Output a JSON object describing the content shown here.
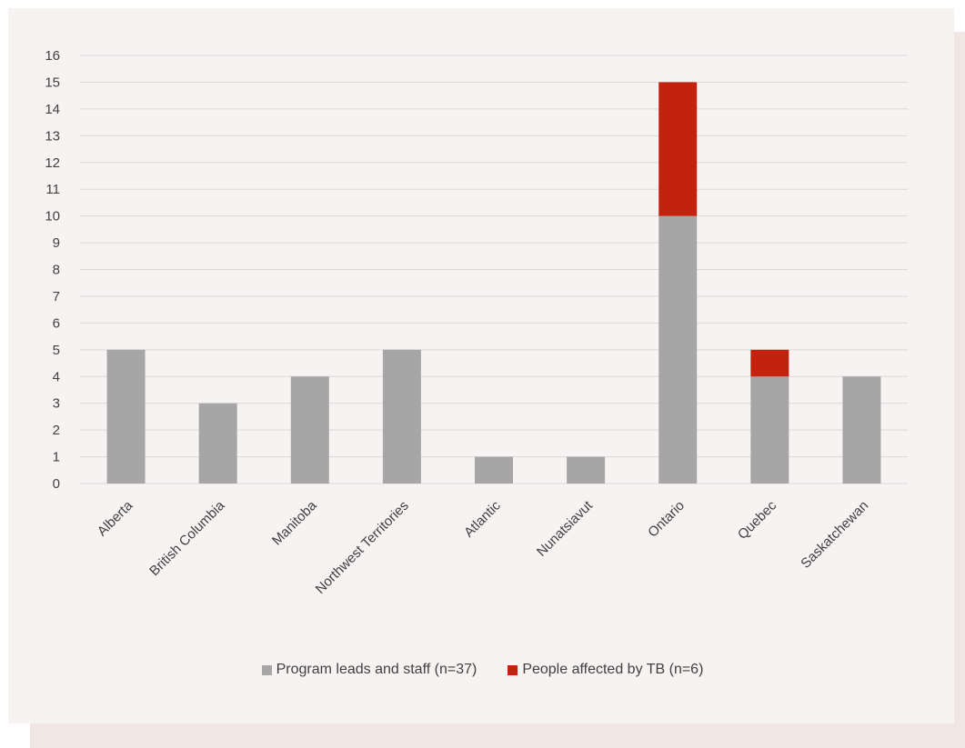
{
  "chart_data": {
    "type": "bar",
    "stacked": true,
    "categories": [
      "Alberta",
      "British Columbia",
      "Manitoba",
      "Northwest Territories",
      "Atlantic",
      "Nunatsiavut",
      "Ontario",
      "Quebec",
      "Saskatchewan"
    ],
    "series": [
      {
        "name": "Program leads and staff (n=37)",
        "color": "#a6a6a6",
        "values": [
          5,
          3,
          4,
          5,
          1,
          1,
          10,
          4,
          4
        ]
      },
      {
        "name": "People affected by TB (n=6)",
        "color": "#c3220f",
        "values": [
          0,
          0,
          0,
          0,
          0,
          0,
          5,
          1,
          0
        ]
      }
    ],
    "ylim": [
      0,
      16
    ],
    "yticks": [
      0,
      1,
      2,
      3,
      4,
      5,
      6,
      7,
      8,
      9,
      10,
      11,
      12,
      13,
      14,
      15,
      16
    ],
    "grid": true,
    "legend_position": "bottom"
  }
}
